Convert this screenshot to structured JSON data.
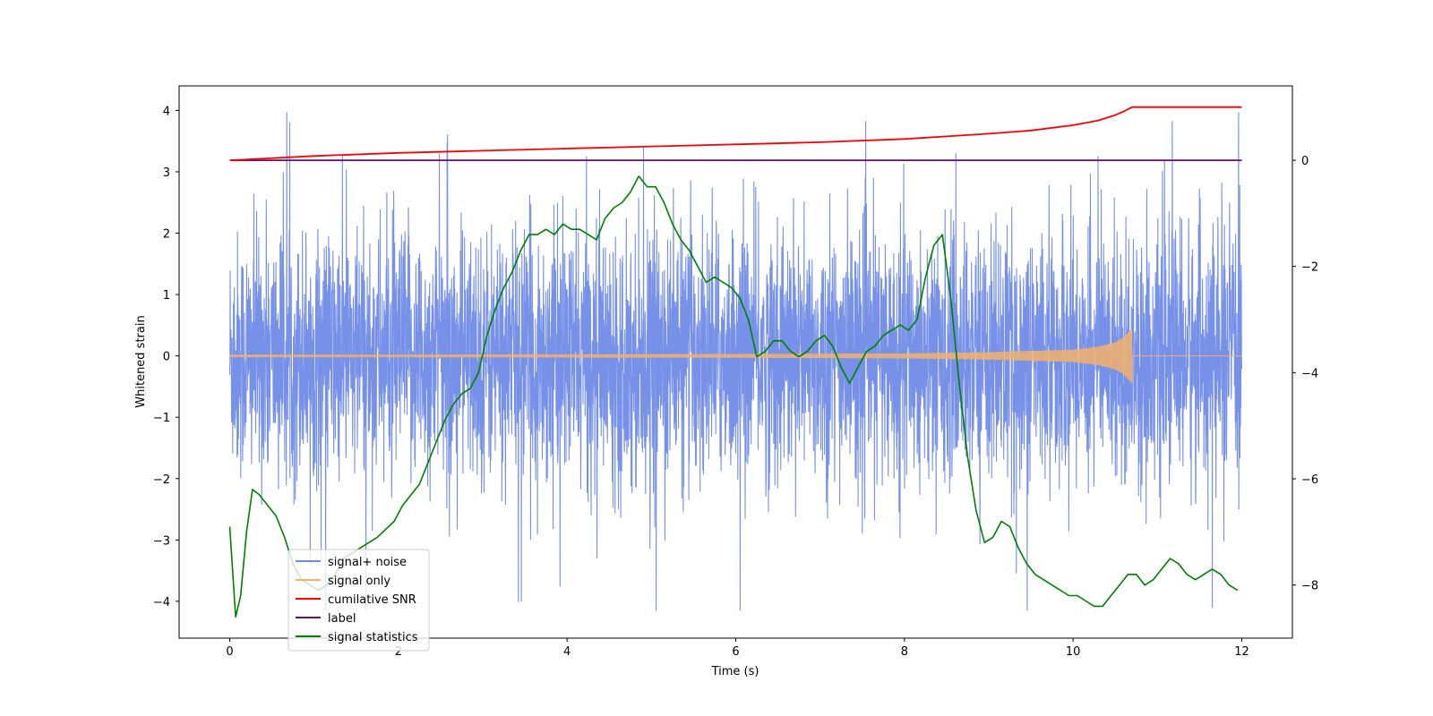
{
  "chart_data": {
    "type": "line",
    "xlabel": "Time (s)",
    "ylabel_left": "Whitened strain",
    "ylabel_right": "",
    "xlim": [
      -0.6,
      12.6
    ],
    "ylim_left": [
      -4.6,
      4.4
    ],
    "ylim_right": [
      -9.0,
      1.4
    ],
    "xticks": [
      "0",
      "2",
      "4",
      "6",
      "8",
      "10",
      "12"
    ],
    "yticks_left": [
      "−4",
      "−3",
      "−2",
      "−1",
      "0",
      "1",
      "2",
      "3",
      "4"
    ],
    "yticks_right": [
      "−8",
      "−6",
      "−4",
      "−2",
      "0"
    ],
    "grid": false,
    "legend_position": "lower-left",
    "series": [
      {
        "name": "signal+ noise",
        "axis": "left",
        "color": "#6f8be6",
        "style": "dense-noise",
        "x_range": [
          0,
          12
        ],
        "typical_band": [
          -2.0,
          2.0
        ],
        "max": 3.97,
        "min": -4.15
      },
      {
        "name": "signal only",
        "axis": "left",
        "color": "#f5b26b",
        "style": "chirp",
        "x_range": [
          0,
          12
        ],
        "merger_time": 10.7,
        "peak_amplitude": 0.45,
        "x": [
          0,
          2,
          4,
          6,
          8,
          9,
          10,
          10.3,
          10.5,
          10.6,
          10.7,
          12
        ],
        "envelope": [
          0.02,
          0.02,
          0.025,
          0.03,
          0.04,
          0.06,
          0.1,
          0.15,
          0.22,
          0.3,
          0.45,
          0.0
        ]
      },
      {
        "name": "cumilative SNR",
        "axis": "right",
        "color": "#ff0000",
        "x": [
          0,
          1,
          2,
          3,
          4,
          5,
          6,
          7,
          8,
          8.5,
          9,
          9.5,
          10,
          10.3,
          10.5,
          10.6,
          10.7,
          11,
          12
        ],
        "y": [
          0,
          0.08,
          0.14,
          0.18,
          0.22,
          0.26,
          0.3,
          0.34,
          0.4,
          0.45,
          0.5,
          0.56,
          0.66,
          0.75,
          0.85,
          0.92,
          1.0,
          1.0,
          1.0
        ]
      },
      {
        "name": "label",
        "axis": "right",
        "color": "#6a0f6a",
        "x": [
          0,
          12
        ],
        "y": [
          0,
          0
        ]
      },
      {
        "name": "signal statistics",
        "axis": "right",
        "color": "#008000",
        "x": [
          0,
          0.07,
          0.13,
          0.2,
          0.27,
          0.35,
          0.45,
          0.55,
          0.65,
          0.75,
          0.85,
          0.95,
          1.05,
          1.15,
          1.25,
          1.35,
          1.45,
          1.55,
          1.65,
          1.75,
          1.85,
          1.95,
          2.05,
          2.15,
          2.25,
          2.35,
          2.45,
          2.55,
          2.65,
          2.75,
          2.85,
          2.95,
          3.05,
          3.15,
          3.25,
          3.35,
          3.45,
          3.55,
          3.65,
          3.75,
          3.85,
          3.95,
          4.05,
          4.15,
          4.25,
          4.35,
          4.45,
          4.55,
          4.65,
          4.75,
          4.85,
          4.95,
          5.05,
          5.15,
          5.25,
          5.35,
          5.45,
          5.55,
          5.65,
          5.75,
          5.85,
          5.95,
          6.05,
          6.15,
          6.25,
          6.35,
          6.45,
          6.55,
          6.65,
          6.75,
          6.85,
          6.95,
          7.05,
          7.15,
          7.25,
          7.35,
          7.45,
          7.55,
          7.65,
          7.75,
          7.85,
          7.95,
          8.05,
          8.15,
          8.25,
          8.35,
          8.45,
          8.55,
          8.65,
          8.75,
          8.85,
          8.95,
          9.05,
          9.15,
          9.25,
          9.35,
          9.45,
          9.55,
          9.65,
          9.75,
          9.85,
          9.95,
          10.05,
          10.15,
          10.25,
          10.35,
          10.45,
          10.55,
          10.65,
          10.75,
          10.85,
          10.95,
          11.05,
          11.15,
          11.25,
          11.35,
          11.45,
          11.55,
          11.65,
          11.75,
          11.85,
          11.95
        ],
        "y": [
          -6.9,
          -8.6,
          -8.2,
          -7.0,
          -6.2,
          -6.3,
          -6.5,
          -6.7,
          -7.1,
          -7.6,
          -7.9,
          -8.0,
          -8.1,
          -8.0,
          -7.8,
          -7.5,
          -7.4,
          -7.3,
          -7.2,
          -7.1,
          -6.95,
          -6.8,
          -6.5,
          -6.3,
          -6.1,
          -5.7,
          -5.3,
          -4.9,
          -4.6,
          -4.4,
          -4.3,
          -4.0,
          -3.3,
          -2.8,
          -2.4,
          -2.1,
          -1.7,
          -1.4,
          -1.4,
          -1.3,
          -1.4,
          -1.2,
          -1.3,
          -1.3,
          -1.4,
          -1.5,
          -1.1,
          -0.9,
          -0.8,
          -0.6,
          -0.3,
          -0.5,
          -0.5,
          -0.8,
          -1.2,
          -1.5,
          -1.7,
          -2.0,
          -2.3,
          -2.2,
          -2.3,
          -2.4,
          -2.6,
          -3.0,
          -3.7,
          -3.6,
          -3.4,
          -3.4,
          -3.6,
          -3.7,
          -3.6,
          -3.4,
          -3.3,
          -3.5,
          -3.9,
          -4.2,
          -3.9,
          -3.6,
          -3.5,
          -3.3,
          -3.2,
          -3.1,
          -3.2,
          -3.0,
          -2.2,
          -1.6,
          -1.4,
          -2.6,
          -4.2,
          -5.6,
          -6.6,
          -7.2,
          -7.1,
          -6.8,
          -6.9,
          -7.3,
          -7.6,
          -7.8,
          -7.9,
          -8.0,
          -8.1,
          -8.2,
          -8.2,
          -8.3,
          -8.4,
          -8.4,
          -8.2,
          -8.0,
          -7.8,
          -7.8,
          -8.0,
          -7.9,
          -7.7,
          -7.5,
          -7.6,
          -7.8,
          -7.9,
          -7.8,
          -7.7,
          -7.8,
          -8.0,
          -8.1
        ]
      }
    ]
  }
}
